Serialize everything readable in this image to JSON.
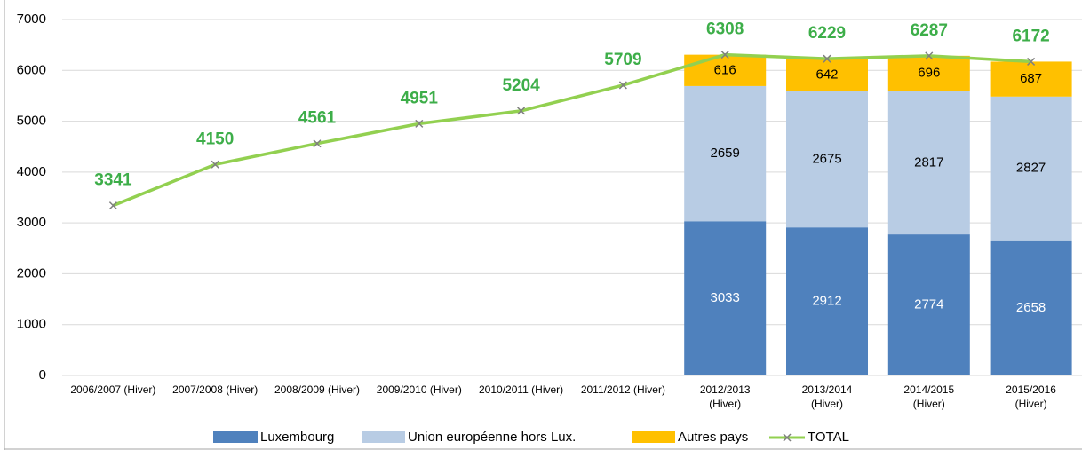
{
  "chart_data": {
    "type": "bar",
    "stacked": true,
    "categories": [
      "2006/2007 (Hiver)",
      "2007/2008 (Hiver)",
      "2008/2009 (Hiver)",
      "2009/2010 (Hiver)",
      "2010/2011 (Hiver)",
      "2011/2012 (Hiver)",
      "2012/2013 (Hiver)",
      "2013/2014 (Hiver)",
      "2014/2015 (Hiver)",
      "2015/2016 (Hiver)"
    ],
    "series": [
      {
        "name": "Luxembourg",
        "type": "bar",
        "color": "#4f81bd",
        "values": [
          null,
          null,
          null,
          null,
          null,
          null,
          3033,
          2912,
          2774,
          2658
        ]
      },
      {
        "name": "Union européenne hors Lux.",
        "type": "bar",
        "color": "#b8cce4",
        "values": [
          null,
          null,
          null,
          null,
          null,
          null,
          2659,
          2675,
          2817,
          2827
        ]
      },
      {
        "name": "Autres pays",
        "type": "bar",
        "color": "#ffc000",
        "values": [
          null,
          null,
          null,
          null,
          null,
          null,
          616,
          642,
          696,
          687
        ]
      },
      {
        "name": "TOTAL",
        "type": "line",
        "color": "#92d050",
        "values": [
          3341,
          4150,
          4561,
          4951,
          5204,
          5709,
          6308,
          6229,
          6287,
          6172
        ]
      }
    ],
    "ylim": [
      0,
      7000
    ],
    "yticks": [
      0,
      1000,
      2000,
      3000,
      4000,
      5000,
      6000,
      7000
    ],
    "grid": true,
    "legend": "bottom"
  }
}
